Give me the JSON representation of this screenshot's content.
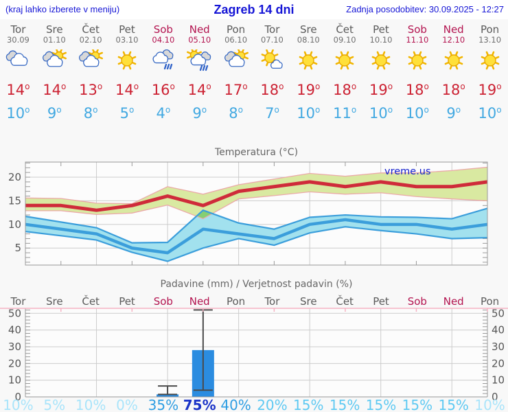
{
  "header": {
    "left_note": "(kraj lahko izberete v meniju)",
    "title": "Zagreb 14 dni",
    "updated": "Zadnja posodobitev: 30.09.2025 - 12:27"
  },
  "colors": {
    "header_blue": "#1515d6",
    "weekend": "#b3134f",
    "day_gray": "#5a5a5a",
    "high_red": "#cc2233",
    "low_blue": "#41a8e1",
    "line_red": "#cf2b3a",
    "line_blue": "#3b9edb",
    "band_green": "#d9e9a1",
    "band_green_edge": "#eba9a9",
    "band_blue": "#a2e1ee",
    "band_overlap": "#85cf74",
    "bar_blue": "#2b8ce0",
    "whisker": "#4a4a4a",
    "grid": "#cccccc",
    "axis": "#999999",
    "chart_text": "#666666",
    "pink_border": "#f5b1c2",
    "prob_vlight": "#a9e4fa",
    "prob_light": "#5ec9f2",
    "prob_mid": "#2d9de2",
    "prob_dark": "#1c35c8",
    "watermark_blue": "#1420cc"
  },
  "days": [
    {
      "name": "Tor",
      "date": "30.09",
      "icon": "cloudy",
      "high": 14,
      "low": 10,
      "weekend": false
    },
    {
      "name": "Sre",
      "date": "01.10",
      "icon": "partly-cloudy",
      "high": 14,
      "low": 9,
      "weekend": false
    },
    {
      "name": "Čet",
      "date": "02.10",
      "icon": "partly-cloudy",
      "high": 13,
      "low": 8,
      "weekend": false
    },
    {
      "name": "Pet",
      "date": "03.10",
      "icon": "sunny",
      "high": 14,
      "low": 5,
      "weekend": false
    },
    {
      "name": "Sob",
      "date": "04.10",
      "icon": "rain",
      "high": 16,
      "low": 4,
      "weekend": true
    },
    {
      "name": "Ned",
      "date": "05.10",
      "icon": "sun-rain",
      "high": 14,
      "low": 9,
      "weekend": true
    },
    {
      "name": "Pon",
      "date": "06.10",
      "icon": "partly-cloudy",
      "high": 17,
      "low": 8,
      "weekend": false
    },
    {
      "name": "Tor",
      "date": "07.10",
      "icon": "mostly-sunny",
      "high": 18,
      "low": 7,
      "weekend": false
    },
    {
      "name": "Sre",
      "date": "08.10",
      "icon": "sunny",
      "high": 19,
      "low": 10,
      "weekend": false
    },
    {
      "name": "Čet",
      "date": "09.10",
      "icon": "sunny",
      "high": 18,
      "low": 11,
      "weekend": false
    },
    {
      "name": "Pet",
      "date": "10.10",
      "icon": "sunny",
      "high": 19,
      "low": 10,
      "weekend": false
    },
    {
      "name": "Sob",
      "date": "11.10",
      "icon": "sunny",
      "high": 18,
      "low": 10,
      "weekend": true
    },
    {
      "name": "Ned",
      "date": "12.10",
      "icon": "sunny",
      "high": 18,
      "low": 9,
      "weekend": true
    },
    {
      "name": "Pon",
      "date": "13.10",
      "icon": "sunny",
      "high": 19,
      "low": 10,
      "weekend": false
    }
  ],
  "chart_data": [
    {
      "type": "line",
      "title": "Temperatura (°C)",
      "watermark": "vreme.us",
      "ylim": [
        1.4,
        23.2
      ],
      "yticks": [
        5,
        10,
        15,
        20
      ],
      "x_days": 14,
      "series": [
        {
          "name": "max",
          "label": "daily max temperature",
          "values": [
            14,
            14,
            13,
            14,
            16,
            14,
            17,
            18,
            19,
            18,
            19,
            18,
            18,
            19
          ]
        },
        {
          "name": "max-upper",
          "label": "max range upper bound",
          "values": [
            15.6,
            15.5,
            14.5,
            14.4,
            18,
            16.4,
            18.4,
            19.6,
            20.8,
            20.2,
            20.9,
            20.9,
            21.4,
            22.1
          ]
        },
        {
          "name": "max-lower",
          "label": "max range lower bound",
          "values": [
            12.9,
            12.9,
            12.1,
            12.4,
            14.1,
            11.2,
            15.4,
            16.1,
            16.9,
            16.4,
            16.7,
            15.9,
            15.4,
            15
          ]
        },
        {
          "name": "min",
          "label": "daily min temperature",
          "values": [
            10,
            9,
            8,
            5,
            4,
            9,
            8,
            7,
            10,
            11,
            10,
            10,
            9,
            10
          ]
        },
        {
          "name": "min-upper",
          "label": "min range upper bound",
          "values": [
            11.7,
            10.5,
            9.3,
            6.1,
            6.2,
            13,
            10.3,
            9,
            11.5,
            12,
            11.6,
            11.5,
            11.2,
            13.4
          ]
        },
        {
          "name": "min-lower",
          "label": "min range lower bound",
          "values": [
            8.5,
            7.6,
            6.7,
            4.1,
            2.2,
            5,
            7,
            5.6,
            8.2,
            9.5,
            8.7,
            8,
            7,
            7.2
          ]
        }
      ]
    },
    {
      "type": "bar",
      "title": "Padavine (mm) / Verjetnost padavin (%)",
      "categories": [
        "Tor",
        "Sre",
        "Čet",
        "Pet",
        "Sob",
        "Ned",
        "Pon",
        "Tor",
        "Sre",
        "Čet",
        "Pet",
        "Sob",
        "Ned",
        "Pon"
      ],
      "values": [
        0,
        0,
        0,
        0,
        1.5,
        28,
        0,
        0,
        0,
        0,
        0,
        0,
        0,
        0
      ],
      "error_low": [
        null,
        null,
        null,
        null,
        1.5,
        4,
        null,
        null,
        null,
        null,
        null,
        null,
        null,
        null
      ],
      "error_high": [
        null,
        null,
        null,
        null,
        6.5,
        52,
        null,
        null,
        null,
        null,
        null,
        null,
        null,
        null
      ],
      "probabilities": [
        "10%",
        "5%",
        "10%",
        "0%",
        "35%",
        "75%",
        "40%",
        "20%",
        "15%",
        "15%",
        "15%",
        "15%",
        "15%",
        "10%"
      ],
      "ylim": [
        0,
        53
      ],
      "yticks": [
        0,
        10,
        20,
        30,
        40,
        50
      ]
    }
  ]
}
